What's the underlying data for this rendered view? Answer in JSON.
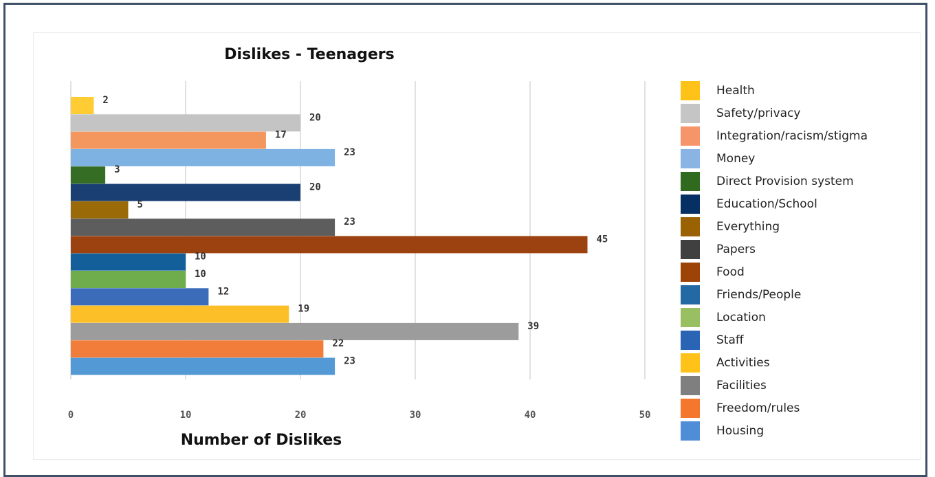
{
  "chart_data": {
    "type": "bar",
    "orientation": "horizontal",
    "title": "Dislikes - Teenagers",
    "xlabel": "Number of Dislikes",
    "ylabel": "",
    "xlim": [
      0,
      50
    ],
    "xticks": [
      "0",
      "10",
      "20",
      "30",
      "40",
      "50"
    ],
    "grid": "vertical",
    "legend_position": "right",
    "categories": [
      "Health",
      "Safety/privacy",
      "Integration/racism/stigma",
      "Money",
      "Direct Provision system",
      "Education/School",
      "Everything",
      "Papers",
      "Food",
      "Friends/People",
      "Location",
      "Staff",
      "Activities",
      "Facilities",
      "Freedom/rules",
      "Housing"
    ],
    "values": [
      2,
      20,
      17,
      23,
      3,
      20,
      5,
      23,
      45,
      10,
      10,
      12,
      19,
      39,
      22,
      23
    ],
    "colors": [
      "#ffcc33",
      "#c4c4c4",
      "#f4975e",
      "#7eb2e2",
      "#356d25",
      "#1a3f73",
      "#9a6a08",
      "#5d5d5d",
      "#9c4210",
      "#135f99",
      "#6fad4c",
      "#3a6cba",
      "#fcbf28",
      "#9c9c9c",
      "#f27c3a",
      "#5299d6"
    ],
    "legend_colors": [
      "#ffc219",
      "#c5c5c5",
      "#f7956a",
      "#8ab4e3",
      "#2f6a1e",
      "#062f63",
      "#9a6203",
      "#404040",
      "#9e4308",
      "#236aa5",
      "#98c062",
      "#2a64b5",
      "#ffc219",
      "#7f7f7f",
      "#f4772d",
      "#4f8ed6"
    ]
  }
}
